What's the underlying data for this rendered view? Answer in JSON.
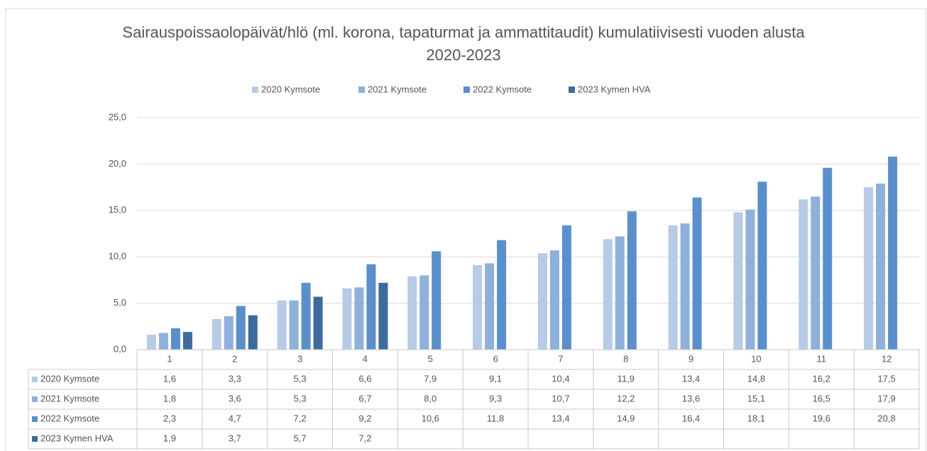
{
  "chart_data": {
    "type": "bar",
    "title": "Sairauspoissaolopäivät/hlö (ml. korona, tapaturmat ja ammattitaudit) kumulatiivisesti vuoden alusta 2020-2023",
    "categories": [
      "1",
      "2",
      "3",
      "4",
      "5",
      "6",
      "7",
      "8",
      "9",
      "10",
      "11",
      "12"
    ],
    "series": [
      {
        "name": "2020 Kymsote",
        "color": "#b7cbe6",
        "values": [
          1.6,
          3.3,
          5.3,
          6.6,
          7.9,
          9.1,
          10.4,
          11.9,
          13.4,
          14.8,
          16.2,
          17.5
        ],
        "value_labels": [
          "1,6",
          "3,3",
          "5,3",
          "6,6",
          "7,9",
          "9,1",
          "10,4",
          "11,9",
          "13,4",
          "14,8",
          "16,2",
          "17,5"
        ]
      },
      {
        "name": "2021 Kymsote",
        "color": "#8eb0da",
        "values": [
          1.8,
          3.6,
          5.3,
          6.7,
          8.0,
          9.3,
          10.7,
          12.2,
          13.6,
          15.1,
          16.5,
          17.9
        ],
        "value_labels": [
          "1,8",
          "3,6",
          "5,3",
          "6,7",
          "8,0",
          "9,3",
          "10,7",
          "12,2",
          "13,6",
          "15,1",
          "16,5",
          "17,9"
        ]
      },
      {
        "name": "2022 Kymsote",
        "color": "#5a8fcb",
        "values": [
          2.3,
          4.7,
          7.2,
          9.2,
          10.6,
          11.8,
          13.4,
          14.9,
          16.4,
          18.1,
          19.6,
          20.8
        ],
        "value_labels": [
          "2,3",
          "4,7",
          "7,2",
          "9,2",
          "10,6",
          "11,8",
          "13,4",
          "14,9",
          "16,4",
          "18,1",
          "19,6",
          "20,8"
        ]
      },
      {
        "name": "2023 Kymen HVA",
        "color": "#3c6b9c",
        "values": [
          1.9,
          3.7,
          5.7,
          7.2,
          null,
          null,
          null,
          null,
          null,
          null,
          null,
          null
        ],
        "value_labels": [
          "1,9",
          "3,7",
          "5,7",
          "7,2",
          null,
          null,
          null,
          null,
          null,
          null,
          null,
          null
        ]
      }
    ],
    "ylim": [
      0,
      25
    ],
    "yticks": [
      {
        "value": 0,
        "label": "0,0"
      },
      {
        "value": 5,
        "label": "5,0"
      },
      {
        "value": 10,
        "label": "10,0"
      },
      {
        "value": 15,
        "label": "15,0"
      },
      {
        "value": 20,
        "label": "20,0"
      },
      {
        "value": 25,
        "label": "25,0"
      }
    ],
    "grid": true,
    "legend": "top"
  }
}
